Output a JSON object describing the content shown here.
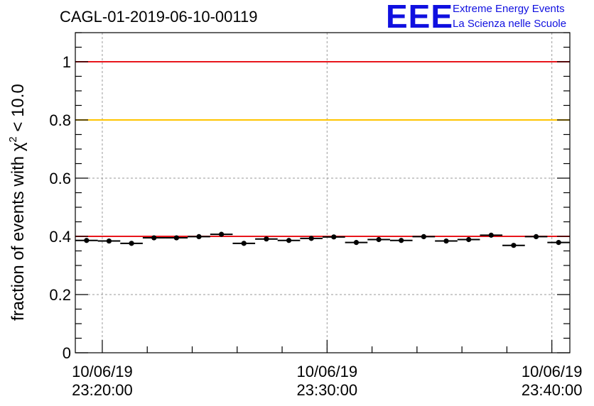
{
  "chart_data": {
    "type": "scatter",
    "title": "CAGL-01-2019-06-10-00119",
    "ylabel": {
      "prefix": "fraction of events with ",
      "symbol": "χ",
      "superscript": "2",
      "suffix": " < 10.0"
    },
    "xlabel": "",
    "ylim": [
      0,
      1.1
    ],
    "yticks": [
      0,
      0.2,
      0.4,
      0.6,
      0.8,
      1
    ],
    "ytick_labels": [
      "0",
      "0.2",
      "0.4",
      "0.6",
      "0.8",
      "1"
    ],
    "xlim_minutes": [
      -1.2,
      20.8
    ],
    "xticks_major": [
      {
        "minute": 0,
        "date": "10/06/19",
        "time": "23:20:00"
      },
      {
        "minute": 10,
        "date": "10/06/19",
        "time": "23:30:00"
      },
      {
        "minute": 20,
        "date": "10/06/19",
        "time": "23:40:00"
      }
    ],
    "grid": true,
    "reference_lines": [
      {
        "y": 1.0,
        "color": "#e8161c"
      },
      {
        "y": 0.8,
        "color": "#ffc400"
      },
      {
        "y": 0.4,
        "color": "#e8161c"
      }
    ],
    "bin_width_minutes": 1,
    "x_minutes": [
      -0.7,
      0.3,
      1.3,
      2.3,
      3.3,
      4.3,
      5.3,
      6.3,
      7.3,
      8.3,
      9.3,
      10.3,
      11.3,
      12.3,
      13.3,
      14.3,
      15.3,
      16.3,
      17.3,
      18.3,
      19.3,
      20.3
    ],
    "values": [
      0.386,
      0.384,
      0.376,
      0.395,
      0.395,
      0.399,
      0.407,
      0.376,
      0.391,
      0.386,
      0.393,
      0.398,
      0.379,
      0.389,
      0.386,
      0.399,
      0.384,
      0.389,
      0.404,
      0.369,
      0.399,
      0.379
    ],
    "marker_color": "#000000"
  },
  "logo": {
    "letters": "EEE",
    "line1": "Extreme Energy Events",
    "line2": "La Scienza nelle Scuole",
    "color": "#1010e0"
  }
}
